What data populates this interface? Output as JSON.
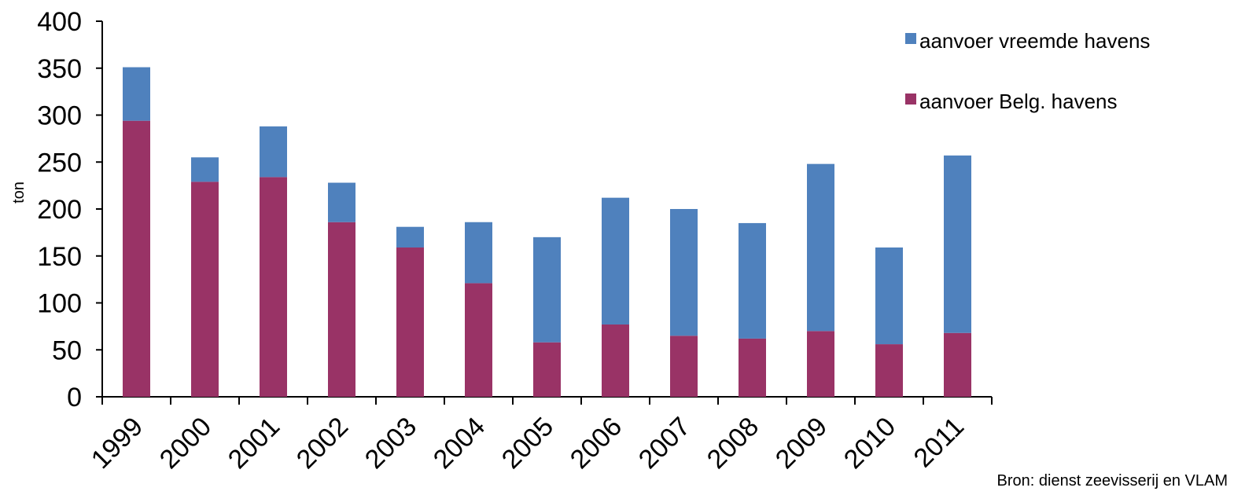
{
  "chart_data": {
    "type": "bar",
    "stacked": true,
    "categories": [
      "1999",
      "2000",
      "2001",
      "2002",
      "2003",
      "2004",
      "2005",
      "2006",
      "2007",
      "2008",
      "2009",
      "2010",
      "2011"
    ],
    "series": [
      {
        "name": "aanvoer Belg. havens",
        "color": "#993366",
        "values": [
          294,
          229,
          234,
          186,
          159,
          121,
          58,
          77,
          65,
          62,
          70,
          56,
          68
        ]
      },
      {
        "name": "aanvoer vreemde havens",
        "color": "#4f81bd",
        "values": [
          57,
          26,
          54,
          42,
          22,
          65,
          112,
          135,
          135,
          123,
          178,
          103,
          189
        ]
      }
    ],
    "ylabel": "ton",
    "ylim": [
      0,
      400
    ],
    "yticks": [
      0,
      50,
      100,
      150,
      200,
      250,
      300,
      350,
      400
    ],
    "grid": false,
    "legend_position": "top-right"
  },
  "source_note": "Bron: dienst zeevisserij en VLAM"
}
